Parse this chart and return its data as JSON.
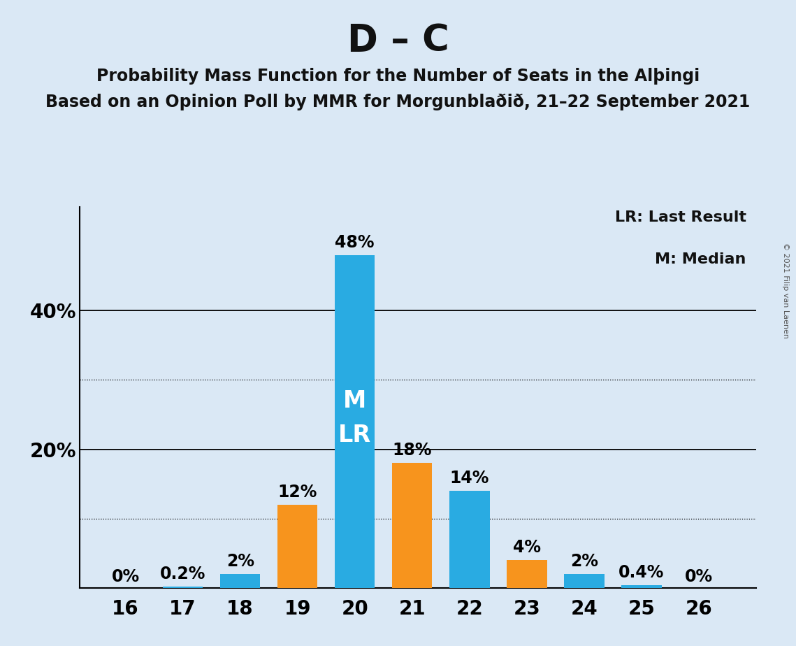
{
  "title": "D – C",
  "subtitle1": "Probability Mass Function for the Number of Seats in the Alþingi",
  "subtitle2": "Based on an Opinion Poll by MMR for Morgunblaðið, 21–22 September 2021",
  "copyright": "© 2021 Filip van Laenen",
  "x_seats": [
    16,
    17,
    18,
    19,
    20,
    21,
    22,
    23,
    24,
    25,
    26
  ],
  "blue_values": [
    0,
    0.2,
    2,
    0,
    48,
    0,
    14,
    0,
    2,
    0.4,
    0
  ],
  "orange_values": [
    0,
    0,
    0,
    12,
    0,
    18,
    0,
    4,
    0,
    0,
    0
  ],
  "blue_color": "#29ABE2",
  "orange_color": "#F7941D",
  "bg_color": "#DAE8F5",
  "bar_width": 0.7,
  "ylim": [
    0,
    55
  ],
  "legend_lr": "LR: Last Result",
  "legend_m": "M: Median",
  "median_seat": 20,
  "label_fontsize": 17,
  "title_fontsize": 38,
  "subtitle_fontsize": 17,
  "axis_fontsize": 20
}
